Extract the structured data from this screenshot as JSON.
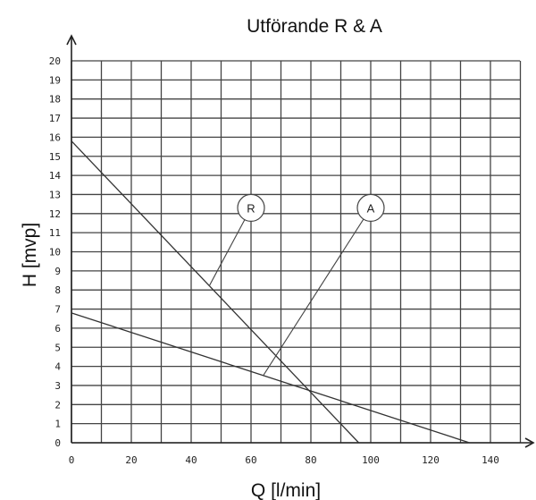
{
  "chart_data": {
    "type": "line",
    "title": "Utförande R & A",
    "xlabel": "Q [l/min]",
    "ylabel": "H [mvp]",
    "xlim": [
      0,
      150
    ],
    "ylim": [
      0,
      20
    ],
    "x_ticks": [
      0,
      20,
      40,
      60,
      80,
      100,
      120,
      140
    ],
    "y_ticks": [
      0,
      1,
      2,
      3,
      4,
      5,
      6,
      7,
      8,
      9,
      10,
      11,
      12,
      13,
      14,
      15,
      16,
      17,
      18,
      19,
      20
    ],
    "grid": true,
    "series": [
      {
        "name": "R",
        "x": [
          0,
          96
        ],
        "y": [
          15.8,
          0
        ]
      },
      {
        "name": "A",
        "x": [
          0,
          133
        ],
        "y": [
          6.8,
          0
        ]
      }
    ],
    "annotations": [
      {
        "label": "R",
        "x": 60,
        "y": 12.3,
        "target_x": 46,
        "target_y": 8.2
      },
      {
        "label": "A",
        "x": 100,
        "y": 12.3,
        "target_x": 64,
        "target_y": 3.5
      }
    ]
  }
}
